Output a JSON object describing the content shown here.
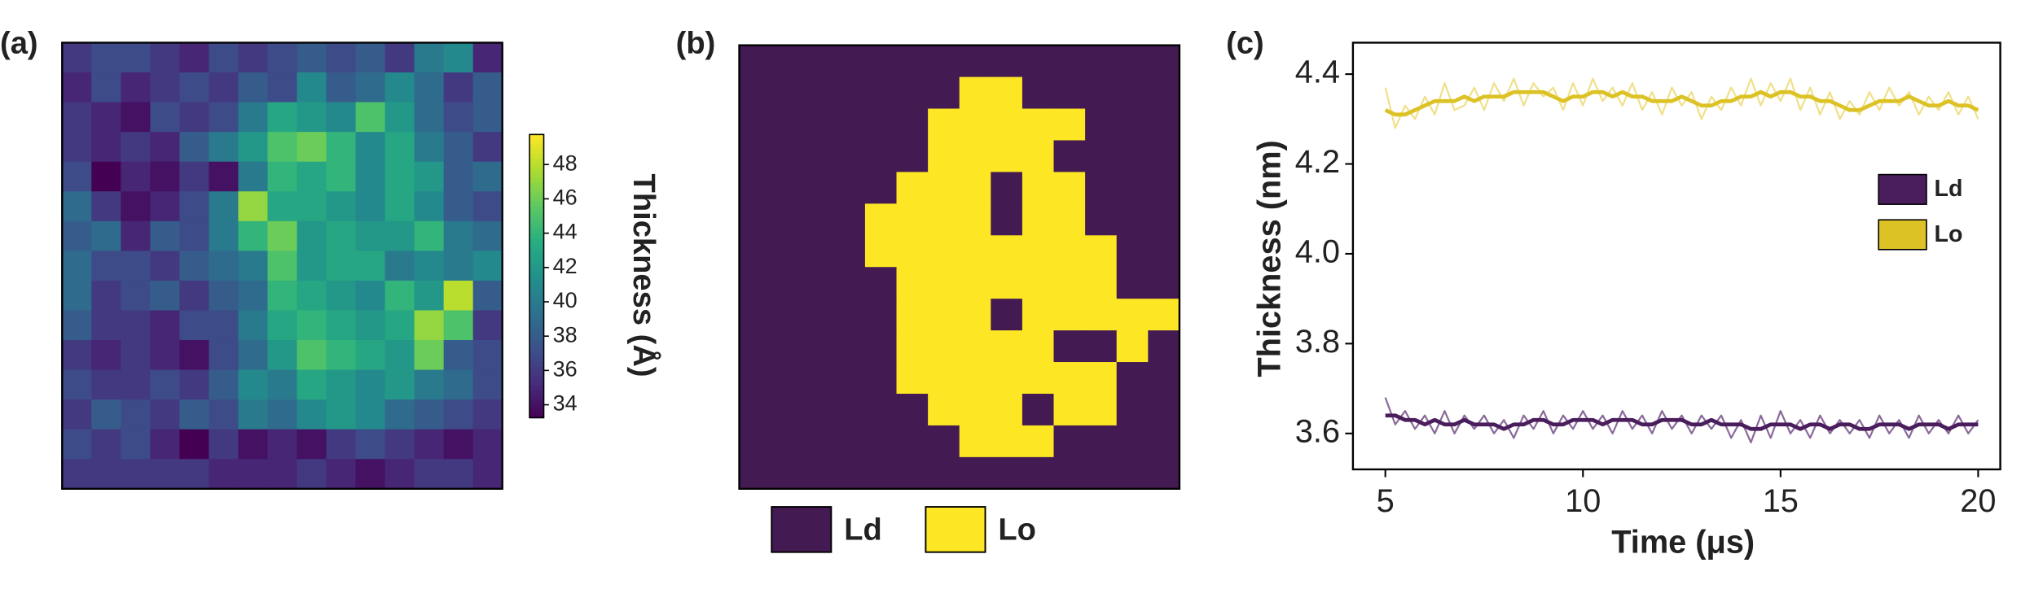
{
  "chart_data": [
    {
      "type": "heatmap",
      "label": "(a)",
      "colormap": "viridis",
      "clim": [
        33.25,
        49.75
      ],
      "colorbar_ticks": [
        34,
        36,
        38,
        40,
        42,
        44,
        46,
        48
      ],
      "colorbar_label": "Thickness (Å)",
      "values": [
        [
          36,
          37,
          37,
          36,
          35,
          37,
          36,
          37,
          38,
          37,
          38,
          36,
          40,
          41,
          35
        ],
        [
          35,
          37,
          35,
          36,
          37,
          36,
          38,
          37,
          41,
          38,
          39,
          41,
          39,
          36,
          38
        ],
        [
          36,
          35,
          34,
          37,
          36,
          37,
          40,
          43,
          42,
          41,
          45,
          42,
          39,
          37,
          38
        ],
        [
          36,
          35,
          36,
          35,
          38,
          40,
          42,
          45,
          46,
          44,
          41,
          43,
          40,
          38,
          36
        ],
        [
          37,
          33,
          35,
          34,
          36,
          34,
          40,
          44,
          43,
          44,
          41,
          43,
          42,
          38,
          39
        ],
        [
          39,
          36,
          34,
          35,
          37,
          40,
          47,
          43,
          43,
          42,
          41,
          43,
          41,
          38,
          37
        ],
        [
          38,
          39,
          35,
          38,
          37,
          40,
          44,
          46,
          42,
          43,
          42,
          42,
          44,
          40,
          39
        ],
        [
          39,
          37,
          37,
          36,
          38,
          39,
          40,
          45,
          42,
          43,
          43,
          40,
          41,
          40,
          41
        ],
        [
          39,
          36,
          37,
          38,
          36,
          38,
          39,
          44,
          43,
          42,
          41,
          44,
          42,
          48,
          38
        ],
        [
          38,
          36,
          36,
          35,
          37,
          37,
          40,
          43,
          44,
          43,
          42,
          43,
          47,
          45,
          36
        ],
        [
          36,
          35,
          36,
          35,
          34,
          37,
          39,
          42,
          45,
          44,
          43,
          42,
          46,
          38,
          37
        ],
        [
          37,
          36,
          36,
          37,
          36,
          38,
          41,
          40,
          43,
          42,
          41,
          42,
          40,
          39,
          37
        ],
        [
          36,
          38,
          37,
          36,
          38,
          37,
          40,
          39,
          41,
          42,
          41,
          39,
          38,
          37,
          36
        ],
        [
          37,
          36,
          37,
          35,
          33,
          36,
          34,
          35,
          34,
          36,
          37,
          36,
          35,
          34,
          35
        ],
        [
          36,
          36,
          36,
          36,
          36,
          35,
          35,
          35,
          36,
          35,
          34,
          35,
          36,
          36,
          35
        ]
      ]
    },
    {
      "type": "phase_map",
      "label": "(b)",
      "categories": [
        "Ld",
        "Lo"
      ],
      "colors": [
        "#441a52",
        "#fde724"
      ],
      "values": [
        [
          0,
          0,
          0,
          0,
          0,
          0,
          0,
          0,
          0,
          0,
          0,
          0,
          0,
          0
        ],
        [
          0,
          0,
          0,
          0,
          0,
          0,
          0,
          1,
          1,
          0,
          0,
          0,
          0,
          0
        ],
        [
          0,
          0,
          0,
          0,
          0,
          0,
          1,
          1,
          1,
          1,
          1,
          0,
          0,
          0
        ],
        [
          0,
          0,
          0,
          0,
          0,
          0,
          1,
          1,
          1,
          1,
          0,
          0,
          0,
          0
        ],
        [
          0,
          0,
          0,
          0,
          0,
          1,
          1,
          1,
          0,
          1,
          1,
          0,
          0,
          0
        ],
        [
          0,
          0,
          0,
          0,
          1,
          1,
          1,
          1,
          0,
          1,
          1,
          0,
          0,
          0
        ],
        [
          0,
          0,
          0,
          0,
          1,
          1,
          1,
          1,
          1,
          1,
          1,
          1,
          0,
          0
        ],
        [
          0,
          0,
          0,
          0,
          0,
          1,
          1,
          1,
          1,
          1,
          1,
          1,
          0,
          0
        ],
        [
          0,
          0,
          0,
          0,
          0,
          1,
          1,
          1,
          0,
          1,
          1,
          1,
          1,
          1
        ],
        [
          0,
          0,
          0,
          0,
          0,
          1,
          1,
          1,
          1,
          1,
          0,
          0,
          1,
          0
        ],
        [
          0,
          0,
          0,
          0,
          0,
          1,
          1,
          1,
          1,
          1,
          1,
          1,
          0,
          0
        ],
        [
          0,
          0,
          0,
          0,
          0,
          0,
          1,
          1,
          1,
          0,
          1,
          1,
          0,
          0
        ],
        [
          0,
          0,
          0,
          0,
          0,
          0,
          0,
          1,
          1,
          1,
          0,
          0,
          0,
          0
        ],
        [
          0,
          0,
          0,
          0,
          0,
          0,
          0,
          0,
          0,
          0,
          0,
          0,
          0,
          0
        ]
      ]
    },
    {
      "type": "line",
      "label": "(c)",
      "xlabel": "Time (μs)",
      "ylabel": "Thickness (nm)",
      "xlim": [
        4.18,
        20.56
      ],
      "xticks": [
        5,
        10,
        15,
        20
      ],
      "ylim": [
        3.52,
        4.47
      ],
      "yticks": [
        3.6,
        3.8,
        {
          "value": 4.0,
          "label": "4.0"
        },
        4.2,
        4.4
      ],
      "legend": "right",
      "x": [
        5,
        5.25,
        5.5,
        5.75,
        6,
        6.25,
        6.5,
        6.75,
        7,
        7.25,
        7.5,
        7.75,
        8,
        8.25,
        8.5,
        8.75,
        9,
        9.25,
        9.5,
        9.75,
        10,
        10.25,
        10.5,
        10.75,
        11,
        11.25,
        11.5,
        11.75,
        12,
        12.25,
        12.5,
        12.75,
        13,
        13.25,
        13.5,
        13.75,
        14,
        14.25,
        14.5,
        14.75,
        15,
        15.25,
        15.5,
        15.75,
        16,
        16.25,
        16.5,
        16.75,
        17,
        17.25,
        17.5,
        17.75,
        18,
        18.25,
        18.5,
        18.75,
        19,
        19.25,
        19.5,
        19.75,
        20
      ],
      "series": [
        {
          "name": "Ld",
          "color": "#4a1d5c",
          "raw_color": "#8a6a9a",
          "values": [
            3.68,
            3.62,
            3.65,
            3.61,
            3.64,
            3.6,
            3.65,
            3.6,
            3.64,
            3.61,
            3.64,
            3.6,
            3.63,
            3.59,
            3.64,
            3.61,
            3.65,
            3.6,
            3.64,
            3.61,
            3.65,
            3.61,
            3.64,
            3.6,
            3.65,
            3.61,
            3.64,
            3.6,
            3.65,
            3.61,
            3.64,
            3.6,
            3.64,
            3.61,
            3.64,
            3.59,
            3.63,
            3.58,
            3.64,
            3.59,
            3.65,
            3.6,
            3.63,
            3.59,
            3.64,
            3.6,
            3.63,
            3.6,
            3.63,
            3.59,
            3.64,
            3.6,
            3.63,
            3.59,
            3.64,
            3.6,
            3.63,
            3.6,
            3.64,
            3.6,
            3.63
          ],
          "smoothed": [
            3.64,
            3.64,
            3.63,
            3.63,
            3.62,
            3.63,
            3.62,
            3.62,
            3.63,
            3.62,
            3.62,
            3.62,
            3.61,
            3.62,
            3.62,
            3.63,
            3.63,
            3.62,
            3.62,
            3.63,
            3.63,
            3.63,
            3.62,
            3.63,
            3.63,
            3.63,
            3.62,
            3.62,
            3.63,
            3.63,
            3.63,
            3.62,
            3.62,
            3.63,
            3.62,
            3.62,
            3.62,
            3.61,
            3.61,
            3.62,
            3.62,
            3.62,
            3.61,
            3.62,
            3.62,
            3.61,
            3.62,
            3.62,
            3.61,
            3.61,
            3.62,
            3.62,
            3.62,
            3.61,
            3.62,
            3.62,
            3.62,
            3.61,
            3.62,
            3.62,
            3.62
          ]
        },
        {
          "name": "Lo",
          "color": "#dcc225",
          "raw_color": "#f0e08a",
          "values": [
            4.37,
            4.28,
            4.33,
            4.3,
            4.35,
            4.31,
            4.38,
            4.32,
            4.33,
            4.37,
            4.32,
            4.38,
            4.34,
            4.39,
            4.33,
            4.38,
            4.35,
            4.37,
            4.32,
            4.38,
            4.33,
            4.39,
            4.34,
            4.37,
            4.33,
            4.38,
            4.32,
            4.36,
            4.31,
            4.37,
            4.33,
            4.36,
            4.3,
            4.35,
            4.32,
            4.37,
            4.33,
            4.39,
            4.33,
            4.38,
            4.34,
            4.39,
            4.32,
            4.37,
            4.31,
            4.36,
            4.3,
            4.34,
            4.31,
            4.36,
            4.32,
            4.37,
            4.33,
            4.36,
            4.31,
            4.35,
            4.32,
            4.36,
            4.31,
            4.35,
            4.3
          ],
          "smoothed": [
            4.32,
            4.31,
            4.31,
            4.32,
            4.33,
            4.34,
            4.34,
            4.34,
            4.35,
            4.34,
            4.35,
            4.35,
            4.35,
            4.36,
            4.36,
            4.36,
            4.36,
            4.35,
            4.34,
            4.35,
            4.35,
            4.36,
            4.36,
            4.35,
            4.36,
            4.35,
            4.35,
            4.34,
            4.34,
            4.34,
            4.35,
            4.34,
            4.33,
            4.33,
            4.34,
            4.34,
            4.35,
            4.35,
            4.36,
            4.35,
            4.36,
            4.36,
            4.35,
            4.35,
            4.34,
            4.34,
            4.33,
            4.32,
            4.32,
            4.33,
            4.34,
            4.34,
            4.34,
            4.35,
            4.34,
            4.33,
            4.33,
            4.34,
            4.33,
            4.33,
            4.32
          ]
        }
      ]
    }
  ]
}
